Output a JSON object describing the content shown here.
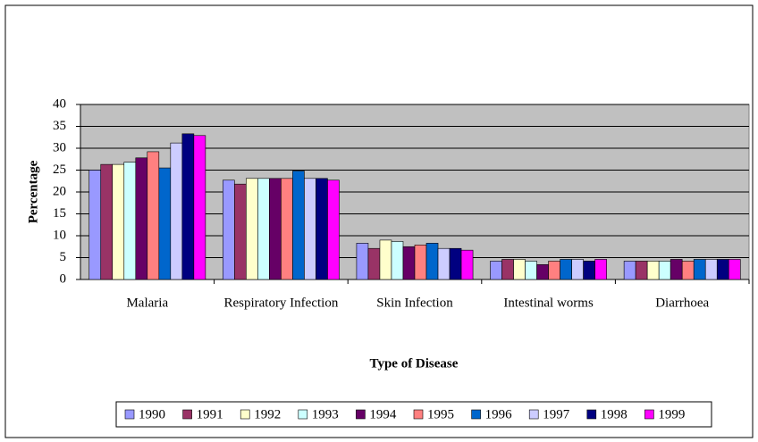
{
  "chart_data": {
    "type": "bar",
    "x_label": "Type of Disease",
    "y_label": "Percentage",
    "categories": [
      "Malaria",
      "Respiratory Infection",
      "Skin Infection",
      "Intestinal worms",
      "Diarrhoea"
    ],
    "series": [
      {
        "name": "1990",
        "color": "#9999ff",
        "values": [
          25,
          22.7,
          8.3,
          4.2,
          4.2
        ]
      },
      {
        "name": "1991",
        "color": "#993366",
        "values": [
          26.3,
          21.8,
          7.1,
          4.6,
          4.2
        ]
      },
      {
        "name": "1992",
        "color": "#ffffcc",
        "values": [
          26.3,
          23.1,
          9.0,
          4.6,
          4.2
        ]
      },
      {
        "name": "1993",
        "color": "#ccffff",
        "values": [
          26.8,
          23.1,
          8.7,
          4.2,
          4.2
        ]
      },
      {
        "name": "1994",
        "color": "#660066",
        "values": [
          27.8,
          23.1,
          7.5,
          3.4,
          4.6
        ]
      },
      {
        "name": "1995",
        "color": "#ff8080",
        "values": [
          29.2,
          23.1,
          7.9,
          4.2,
          4.2
        ]
      },
      {
        "name": "1996",
        "color": "#0066cc",
        "values": [
          25.5,
          24.8,
          8.3,
          4.6,
          4.6
        ]
      },
      {
        "name": "1997",
        "color": "#ccccff",
        "values": [
          31.2,
          23.1,
          7.1,
          4.6,
          4.6
        ]
      },
      {
        "name": "1998",
        "color": "#000080",
        "values": [
          33.3,
          23.1,
          7.1,
          4.2,
          4.6
        ]
      },
      {
        "name": "1999",
        "color": "#ff00ff",
        "values": [
          32.9,
          22.7,
          6.7,
          4.6,
          4.6
        ]
      }
    ],
    "ylim": [
      0,
      40
    ],
    "yticks": [
      0,
      5,
      10,
      15,
      20,
      25,
      30,
      35,
      40
    ],
    "grid": true,
    "plot_background": "#c0c0c0",
    "legend": "bottom"
  }
}
